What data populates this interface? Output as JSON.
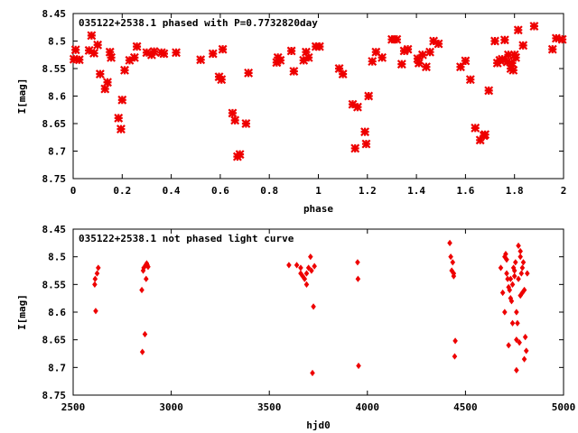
{
  "chart_data": [
    {
      "type": "scatter",
      "title": "035122+2538.1 phased with P=0.7732820day",
      "xlabel": "phase",
      "ylabel": "I[mag]",
      "xlim": [
        0,
        2
      ],
      "ylim": [
        8.45,
        8.75
      ],
      "y_inverted": true,
      "grid": false,
      "xticks": [
        "0",
        "0.2",
        "0.4",
        "0.6",
        "0.8",
        "1",
        "1.2",
        "1.4",
        "1.6",
        "1.8",
        "2"
      ],
      "yticks": [
        "8.45",
        "8.5",
        "8.55",
        "8.6",
        "8.65",
        "8.7",
        "8.75"
      ],
      "marker_color": "#ee0000",
      "series": [
        {
          "x": [
            0.003,
            0.01,
            0.025,
            0.065,
            0.075,
            0.085,
            0.1,
            0.11,
            0.13,
            0.14,
            0.15,
            0.155,
            0.185,
            0.195,
            0.2,
            0.21,
            0.23,
            0.25,
            0.26,
            0.3,
            0.32,
            0.33,
            0.36,
            0.37,
            0.42,
            0.52,
            0.57,
            0.595,
            0.605,
            0.61,
            0.65,
            0.66,
            0.67,
            0.68,
            0.705,
            0.715,
            0.83,
            0.835,
            0.845,
            0.89,
            0.9,
            0.94,
            0.95,
            0.96,
            0.99,
            1.005,
            1.085,
            1.1,
            1.14,
            1.15,
            1.16,
            1.19,
            1.195,
            1.205,
            1.22,
            1.235,
            1.26,
            1.3,
            1.32,
            1.34,
            1.35,
            1.365,
            1.405,
            1.41,
            1.425,
            1.44,
            1.455,
            1.47,
            1.49,
            1.58,
            1.6,
            1.62,
            1.64,
            1.66,
            1.675,
            1.68,
            1.695,
            1.72,
            1.73,
            1.74,
            1.75,
            1.76,
            1.77,
            1.775,
            1.785,
            1.79,
            1.795,
            1.8,
            1.805,
            1.815,
            1.835,
            1.88,
            1.955,
            1.97,
            1.995
          ],
          "y": [
            8.533,
            8.516,
            8.534,
            8.517,
            8.49,
            8.522,
            8.507,
            8.56,
            8.587,
            8.575,
            8.52,
            8.53,
            8.64,
            8.66,
            8.607,
            8.553,
            8.535,
            8.53,
            8.51,
            8.521,
            8.525,
            8.519,
            8.521,
            8.523,
            8.521,
            8.534,
            8.523,
            8.565,
            8.57,
            8.515,
            8.631,
            8.644,
            8.71,
            8.706,
            8.65,
            8.558,
            8.539,
            8.53,
            8.535,
            8.518,
            8.555,
            8.535,
            8.52,
            8.53,
            8.51,
            8.51,
            8.55,
            8.56,
            8.615,
            8.695,
            8.62,
            8.665,
            8.687,
            8.6,
            8.537,
            8.52,
            8.53,
            8.497,
            8.497,
            8.542,
            8.518,
            8.515,
            8.532,
            8.54,
            8.525,
            8.547,
            8.52,
            8.5,
            8.505,
            8.547,
            8.536,
            8.57,
            8.658,
            8.68,
            8.672,
            8.67,
            8.59,
            8.5,
            8.54,
            8.535,
            8.533,
            8.498,
            8.538,
            8.525,
            8.55,
            8.54,
            8.553,
            8.525,
            8.53,
            8.48,
            8.508,
            8.473,
            8.515,
            8.495,
            8.497
          ]
        }
      ]
    },
    {
      "type": "scatter",
      "title": "035122+2538.1 not phased light curve",
      "xlabel": "hjd0",
      "ylabel": "I[mag]",
      "xlim": [
        2500,
        5000
      ],
      "ylim": [
        8.45,
        8.75
      ],
      "y_inverted": true,
      "grid": false,
      "xticks": [
        "2500",
        "3000",
        "3500",
        "4000",
        "4500",
        "5000"
      ],
      "yticks": [
        "8.45",
        "8.5",
        "8.55",
        "8.6",
        "8.65",
        "8.7",
        "8.75"
      ],
      "marker_color": "#ee0000",
      "series": [
        {
          "x": [
            2610,
            2612,
            2615,
            2622,
            2628,
            2850,
            2853,
            2857,
            2860,
            2866,
            2870,
            2872,
            2875,
            2878,
            2882,
            3600,
            3640,
            3660,
            3670,
            3680,
            3690,
            3700,
            3710,
            3715,
            3720,
            3725,
            3730,
            3660,
            3690,
            3950,
            3952,
            3955,
            4420,
            4425,
            4430,
            4435,
            4440,
            4445,
            4440,
            4448,
            4680,
            4690,
            4700,
            4705,
            4710,
            4715,
            4720,
            4725,
            4730,
            4735,
            4740,
            4745,
            4750,
            4755,
            4760,
            4765,
            4770,
            4775,
            4780,
            4785,
            4790,
            4795,
            4800,
            4805,
            4810,
            4815,
            4700,
            4720,
            4740,
            4760,
            4780,
            4800,
            4710,
            4750,
            4790,
            4730,
            4770,
            4760,
            4780
          ],
          "y": [
            8.55,
            8.54,
            8.598,
            8.53,
            8.52,
            8.56,
            8.672,
            8.525,
            8.52,
            8.64,
            8.515,
            8.54,
            8.512,
            8.515,
            8.518,
            8.515,
            8.515,
            8.53,
            8.535,
            8.54,
            8.55,
            8.52,
            8.5,
            8.525,
            8.71,
            8.59,
            8.517,
            8.52,
            8.53,
            8.51,
            8.54,
            8.697,
            8.475,
            8.5,
            8.525,
            8.51,
            8.535,
            8.68,
            8.53,
            8.652,
            8.52,
            8.565,
            8.5,
            8.495,
            8.53,
            8.54,
            8.555,
            8.56,
            8.575,
            8.58,
            8.55,
            8.52,
            8.525,
            8.51,
            8.6,
            8.62,
            8.54,
            8.655,
            8.5,
            8.53,
            8.52,
            8.51,
            8.56,
            8.645,
            8.67,
            8.53,
            8.6,
            8.66,
            8.62,
            8.65,
            8.57,
            8.685,
            8.505,
            8.535,
            8.565,
            8.54,
            8.48,
            8.705,
            8.49
          ]
        }
      ]
    }
  ]
}
